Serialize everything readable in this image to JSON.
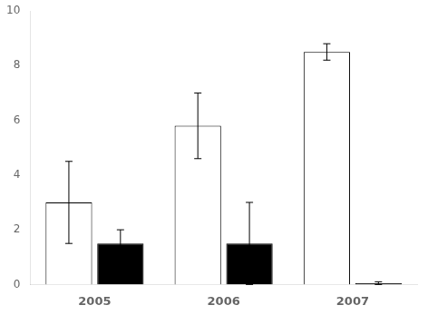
{
  "chart_data": {
    "type": "bar",
    "categories": [
      "2005",
      "2006",
      "2007"
    ],
    "series": [
      {
        "color": "#ffffff",
        "values": [
          3.0,
          5.8,
          8.5
        ],
        "errors": [
          1.5,
          1.2,
          0.3
        ]
      },
      {
        "color": "#000000",
        "values": [
          1.5,
          1.5,
          0.05
        ],
        "errors": [
          0.5,
          1.5,
          0.05
        ]
      }
    ],
    "ylim": [
      0,
      10
    ],
    "yticks": [
      0,
      2,
      4,
      6,
      8,
      10
    ],
    "grid": false
  }
}
